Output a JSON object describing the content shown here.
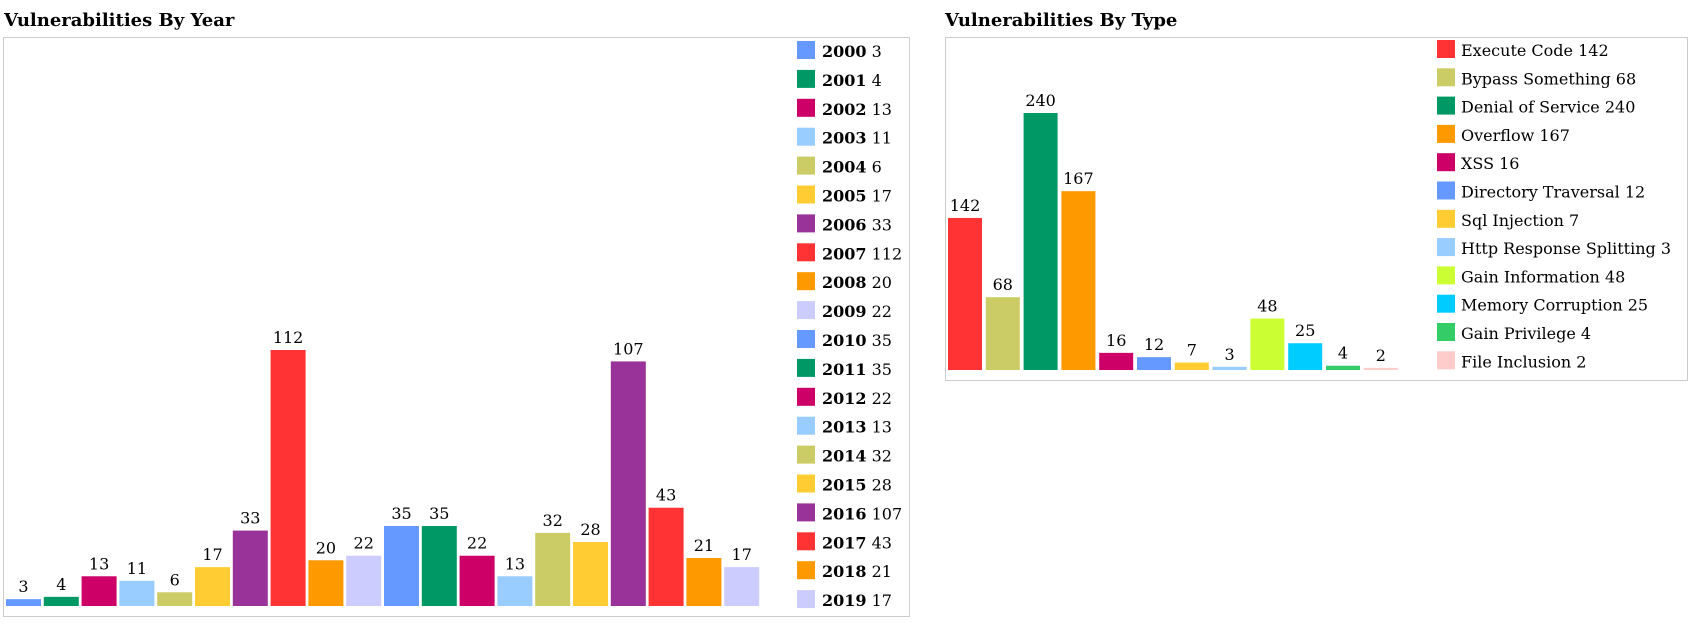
{
  "chart_data": [
    {
      "type": "bar",
      "title": "Vulnerabilities By Year",
      "categories": [
        "2000",
        "2001",
        "2002",
        "2003",
        "2004",
        "2005",
        "2006",
        "2007",
        "2008",
        "2009",
        "2010",
        "2011",
        "2012",
        "2013",
        "2014",
        "2015",
        "2016",
        "2017",
        "2018",
        "2019"
      ],
      "values": [
        3,
        4,
        13,
        11,
        6,
        17,
        33,
        112,
        20,
        22,
        35,
        35,
        22,
        13,
        32,
        28,
        107,
        43,
        21,
        17
      ],
      "colors": [
        "#6699ff",
        "#009966",
        "#cc0066",
        "#99ccff",
        "#cccc66",
        "#ffcc33",
        "#993399",
        "#ff3333",
        "#ff9900",
        "#ccccff",
        "#6699ff",
        "#009966",
        "#cc0066",
        "#99ccff",
        "#cccc66",
        "#ffcc33",
        "#993399",
        "#ff3333",
        "#ff9900",
        "#ccccff"
      ],
      "legend_position": "right",
      "legend_bold_category": true,
      "ylim": [
        0,
        112
      ]
    },
    {
      "type": "bar",
      "title": "Vulnerabilities By Type",
      "categories": [
        "Execute Code",
        "Bypass Something",
        "Denial of Service",
        "Overflow",
        "XSS",
        "Directory Traversal",
        "Sql Injection",
        "Http Response Splitting",
        "Gain Information",
        "Memory Corruption",
        "Gain Privilege",
        "File Inclusion"
      ],
      "values": [
        142,
        68,
        240,
        167,
        16,
        12,
        7,
        3,
        48,
        25,
        4,
        2
      ],
      "colors": [
        "#ff3333",
        "#cccc66",
        "#009966",
        "#ff9900",
        "#cc0066",
        "#6699ff",
        "#ffcc33",
        "#99ccff",
        "#ccff33",
        "#00ccff",
        "#33cc66",
        "#ffcccc"
      ],
      "legend_position": "right",
      "legend_bold_category": false,
      "ylim": [
        0,
        240
      ]
    }
  ]
}
